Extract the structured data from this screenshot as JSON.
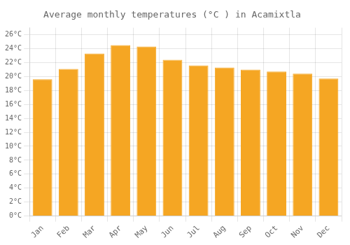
{
  "chart_data": {
    "type": "bar",
    "title": "Average monthly temperatures (°C ) in Acamixtla",
    "categories": [
      "Jan",
      "Feb",
      "Mar",
      "Apr",
      "May",
      "Jun",
      "Jul",
      "Aug",
      "Sep",
      "Oct",
      "Nov",
      "Dec"
    ],
    "values": [
      19.6,
      21.1,
      23.3,
      24.5,
      24.3,
      22.4,
      21.6,
      21.3,
      21.0,
      20.7,
      20.4,
      19.7
    ],
    "color": "#F5A623",
    "ylim": [
      0,
      27
    ],
    "yticks": [
      {
        "value": 0,
        "label": "0°C"
      },
      {
        "value": 2,
        "label": "2°C"
      },
      {
        "value": 4,
        "label": "4°C"
      },
      {
        "value": 6,
        "label": "6°C"
      },
      {
        "value": 8,
        "label": "8°C"
      },
      {
        "value": 10,
        "label": "10°C"
      },
      {
        "value": 12,
        "label": "12°C"
      },
      {
        "value": 14,
        "label": "14°C"
      },
      {
        "value": 16,
        "label": "16°C"
      },
      {
        "value": 18,
        "label": "18°C"
      },
      {
        "value": 20,
        "label": "20°C"
      },
      {
        "value": 22,
        "label": "22°C"
      },
      {
        "value": 24,
        "label": "24°C"
      },
      {
        "value": 26,
        "label": "26°C"
      }
    ],
    "grid": true
  }
}
